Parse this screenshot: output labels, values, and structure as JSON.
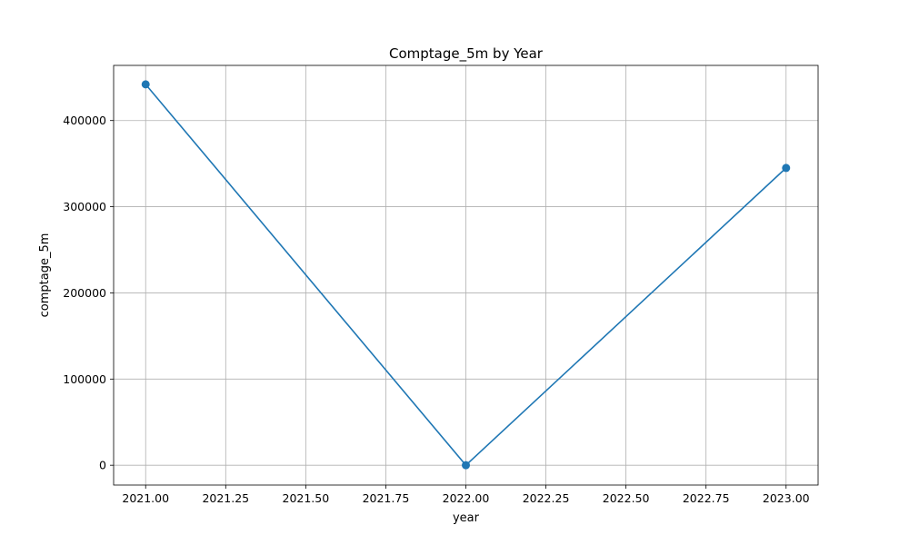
{
  "chart_data": {
    "type": "line",
    "title": "Comptage_5m by Year",
    "xlabel": "year",
    "ylabel": "comptage_5m",
    "x": [
      2021,
      2022,
      2023
    ],
    "series": [
      {
        "values": [
          442000,
          0,
          345000
        ],
        "color": "#1f77b4",
        "marker": "circle"
      }
    ],
    "xlim": [
      2020.9,
      2023.1
    ],
    "ylim": [
      -23000,
      464000
    ],
    "xticks": [
      2021.0,
      2021.25,
      2021.5,
      2021.75,
      2022.0,
      2022.25,
      2022.5,
      2022.75,
      2023.0
    ],
    "xtick_labels": [
      "2021.00",
      "2021.25",
      "2021.50",
      "2021.75",
      "2022.00",
      "2022.25",
      "2022.50",
      "2022.75",
      "2023.00"
    ],
    "yticks": [
      0,
      100000,
      200000,
      300000,
      400000
    ],
    "ytick_labels": [
      "0",
      "100000",
      "200000",
      "300000",
      "400000"
    ],
    "grid": true
  }
}
